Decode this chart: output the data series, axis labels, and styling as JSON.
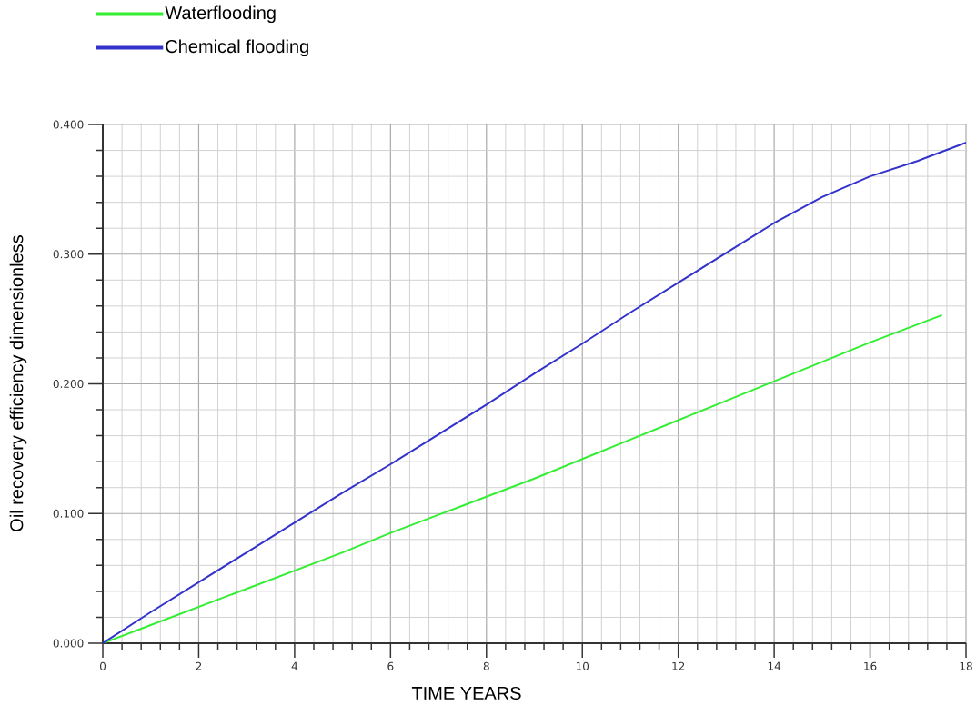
{
  "chart_data": {
    "type": "line",
    "xlabel": "TIME YEARS",
    "ylabel": "Oil recovery efficiency dimensionless",
    "series": [
      {
        "name": "Waterflooding",
        "color": "#33ee33",
        "x": [
          0,
          1,
          2,
          3,
          4,
          5,
          6,
          7,
          8,
          9,
          10,
          11,
          12,
          13,
          14,
          15,
          16,
          17,
          17.5
        ],
        "values": [
          0,
          0.014,
          0.028,
          0.042,
          0.056,
          0.07,
          0.085,
          0.099,
          0.113,
          0.127,
          0.142,
          0.157,
          0.172,
          0.187,
          0.202,
          0.217,
          0.232,
          0.246,
          0.253
        ]
      },
      {
        "name": "Chemical flooding",
        "color": "#3333cc",
        "x": [
          0,
          1,
          2,
          3,
          4,
          5,
          6,
          7,
          8,
          9,
          10,
          11,
          12,
          13,
          14,
          14.5,
          15,
          16,
          17,
          18
        ],
        "values": [
          0,
          0.024,
          0.047,
          0.07,
          0.093,
          0.116,
          0.138,
          0.161,
          0.184,
          0.208,
          0.231,
          0.255,
          0.278,
          0.301,
          0.324,
          0.334,
          0.344,
          0.36,
          0.372,
          0.386
        ]
      }
    ],
    "xlim": [
      0,
      18
    ],
    "ylim": [
      0,
      0.4
    ],
    "xticks": [
      0,
      {
        "value": 0.4,
        "label": null
      },
      {
        "value": 0.8,
        "label": null
      },
      {
        "value": 1.2,
        "label": null
      },
      {
        "value": 1.6,
        "label": null
      },
      2,
      {
        "value": 2.4,
        "label": null
      },
      {
        "value": 2.8,
        "label": null
      },
      {
        "value": 3.2,
        "label": null
      },
      {
        "value": 3.6,
        "label": null
      },
      4,
      {
        "value": 4.4,
        "label": null
      },
      {
        "value": 4.8,
        "label": null
      },
      {
        "value": 5.2,
        "label": null
      },
      {
        "value": 5.6,
        "label": null
      },
      6,
      {
        "value": 6.4,
        "label": null
      },
      {
        "value": 6.8,
        "label": null
      },
      {
        "value": 7.2,
        "label": null
      },
      {
        "value": 7.6,
        "label": null
      },
      8,
      {
        "value": 8.4,
        "label": null
      },
      {
        "value": 8.8,
        "label": null
      },
      {
        "value": 9.2,
        "label": null
      },
      {
        "value": 9.6,
        "label": null
      },
      10,
      {
        "value": 10.4,
        "label": null
      },
      {
        "value": 10.8,
        "label": null
      },
      {
        "value": 11.2,
        "label": null
      },
      {
        "value": 11.6,
        "label": null
      },
      12,
      {
        "value": 12.4,
        "label": null
      },
      {
        "value": 12.8,
        "label": null
      },
      {
        "value": 13.2,
        "label": null
      },
      {
        "value": 13.6,
        "label": null
      },
      14,
      {
        "value": 14.4,
        "label": null
      },
      {
        "value": 14.8,
        "label": null
      },
      {
        "value": 15.2,
        "label": null
      },
      {
        "value": 15.6,
        "label": null
      },
      16,
      {
        "value": 16.4,
        "label": null
      },
      {
        "value": 16.8,
        "label": null
      },
      {
        "value": 17.2,
        "label": null
      },
      {
        "value": 17.6,
        "label": null
      },
      18
    ],
    "yticks": [
      {
        "value": 0,
        "label": "0.000"
      },
      {
        "value": 0.02,
        "label": null
      },
      {
        "value": 0.04,
        "label": null
      },
      {
        "value": 0.06,
        "label": null
      },
      {
        "value": 0.08,
        "label": null
      },
      {
        "value": 0.1,
        "label": "0.100"
      },
      {
        "value": 0.12,
        "label": null
      },
      {
        "value": 0.14,
        "label": null
      },
      {
        "value": 0.16,
        "label": null
      },
      {
        "value": 0.18,
        "label": null
      },
      {
        "value": 0.2,
        "label": "0.200"
      },
      {
        "value": 0.22,
        "label": null
      },
      {
        "value": 0.24,
        "label": null
      },
      {
        "value": 0.26,
        "label": null
      },
      {
        "value": 0.28,
        "label": null
      },
      {
        "value": 0.3,
        "label": "0.300"
      },
      {
        "value": 0.32,
        "label": null
      },
      {
        "value": 0.34,
        "label": null
      },
      {
        "value": 0.36,
        "label": null
      },
      {
        "value": 0.38,
        "label": null
      },
      {
        "value": 0.4,
        "label": "0.400"
      }
    ],
    "grid": true,
    "legend": "top left"
  }
}
